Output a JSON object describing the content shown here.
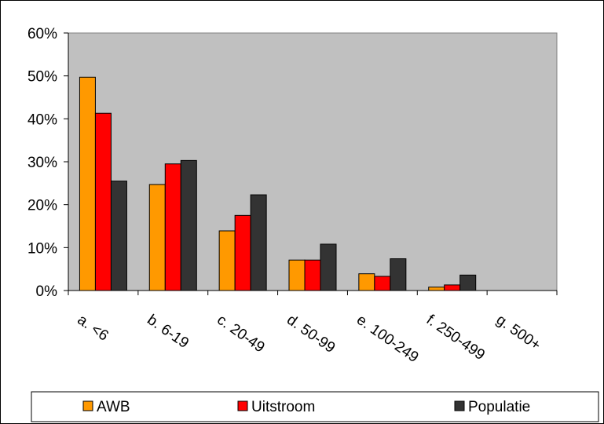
{
  "chart_data": {
    "type": "bar",
    "categories": [
      "a. <6",
      "b. 6-19",
      "c. 20-49",
      "d. 50-99",
      "e. 100-249",
      "f. 250-499",
      "g. 500+"
    ],
    "series": [
      {
        "name": "AWB",
        "color": "#FF9900",
        "values": [
          49.7,
          24.7,
          13.9,
          7.1,
          3.9,
          0.8,
          0.0
        ]
      },
      {
        "name": "Uitstroom",
        "color": "#FF0000",
        "values": [
          41.3,
          29.5,
          17.5,
          7.1,
          3.3,
          1.3,
          0.0
        ]
      },
      {
        "name": "Populatie",
        "color": "#333333",
        "values": [
          25.5,
          30.3,
          22.3,
          10.8,
          7.4,
          3.6,
          0.0
        ]
      }
    ],
    "y_ticks": [
      "0%",
      "10%",
      "20%",
      "30%",
      "40%",
      "50%",
      "60%"
    ],
    "ylim": [
      0,
      60
    ],
    "y_unit": "%",
    "plot_background": "#C0C0C0",
    "grid": false,
    "legend_position": "bottom"
  }
}
